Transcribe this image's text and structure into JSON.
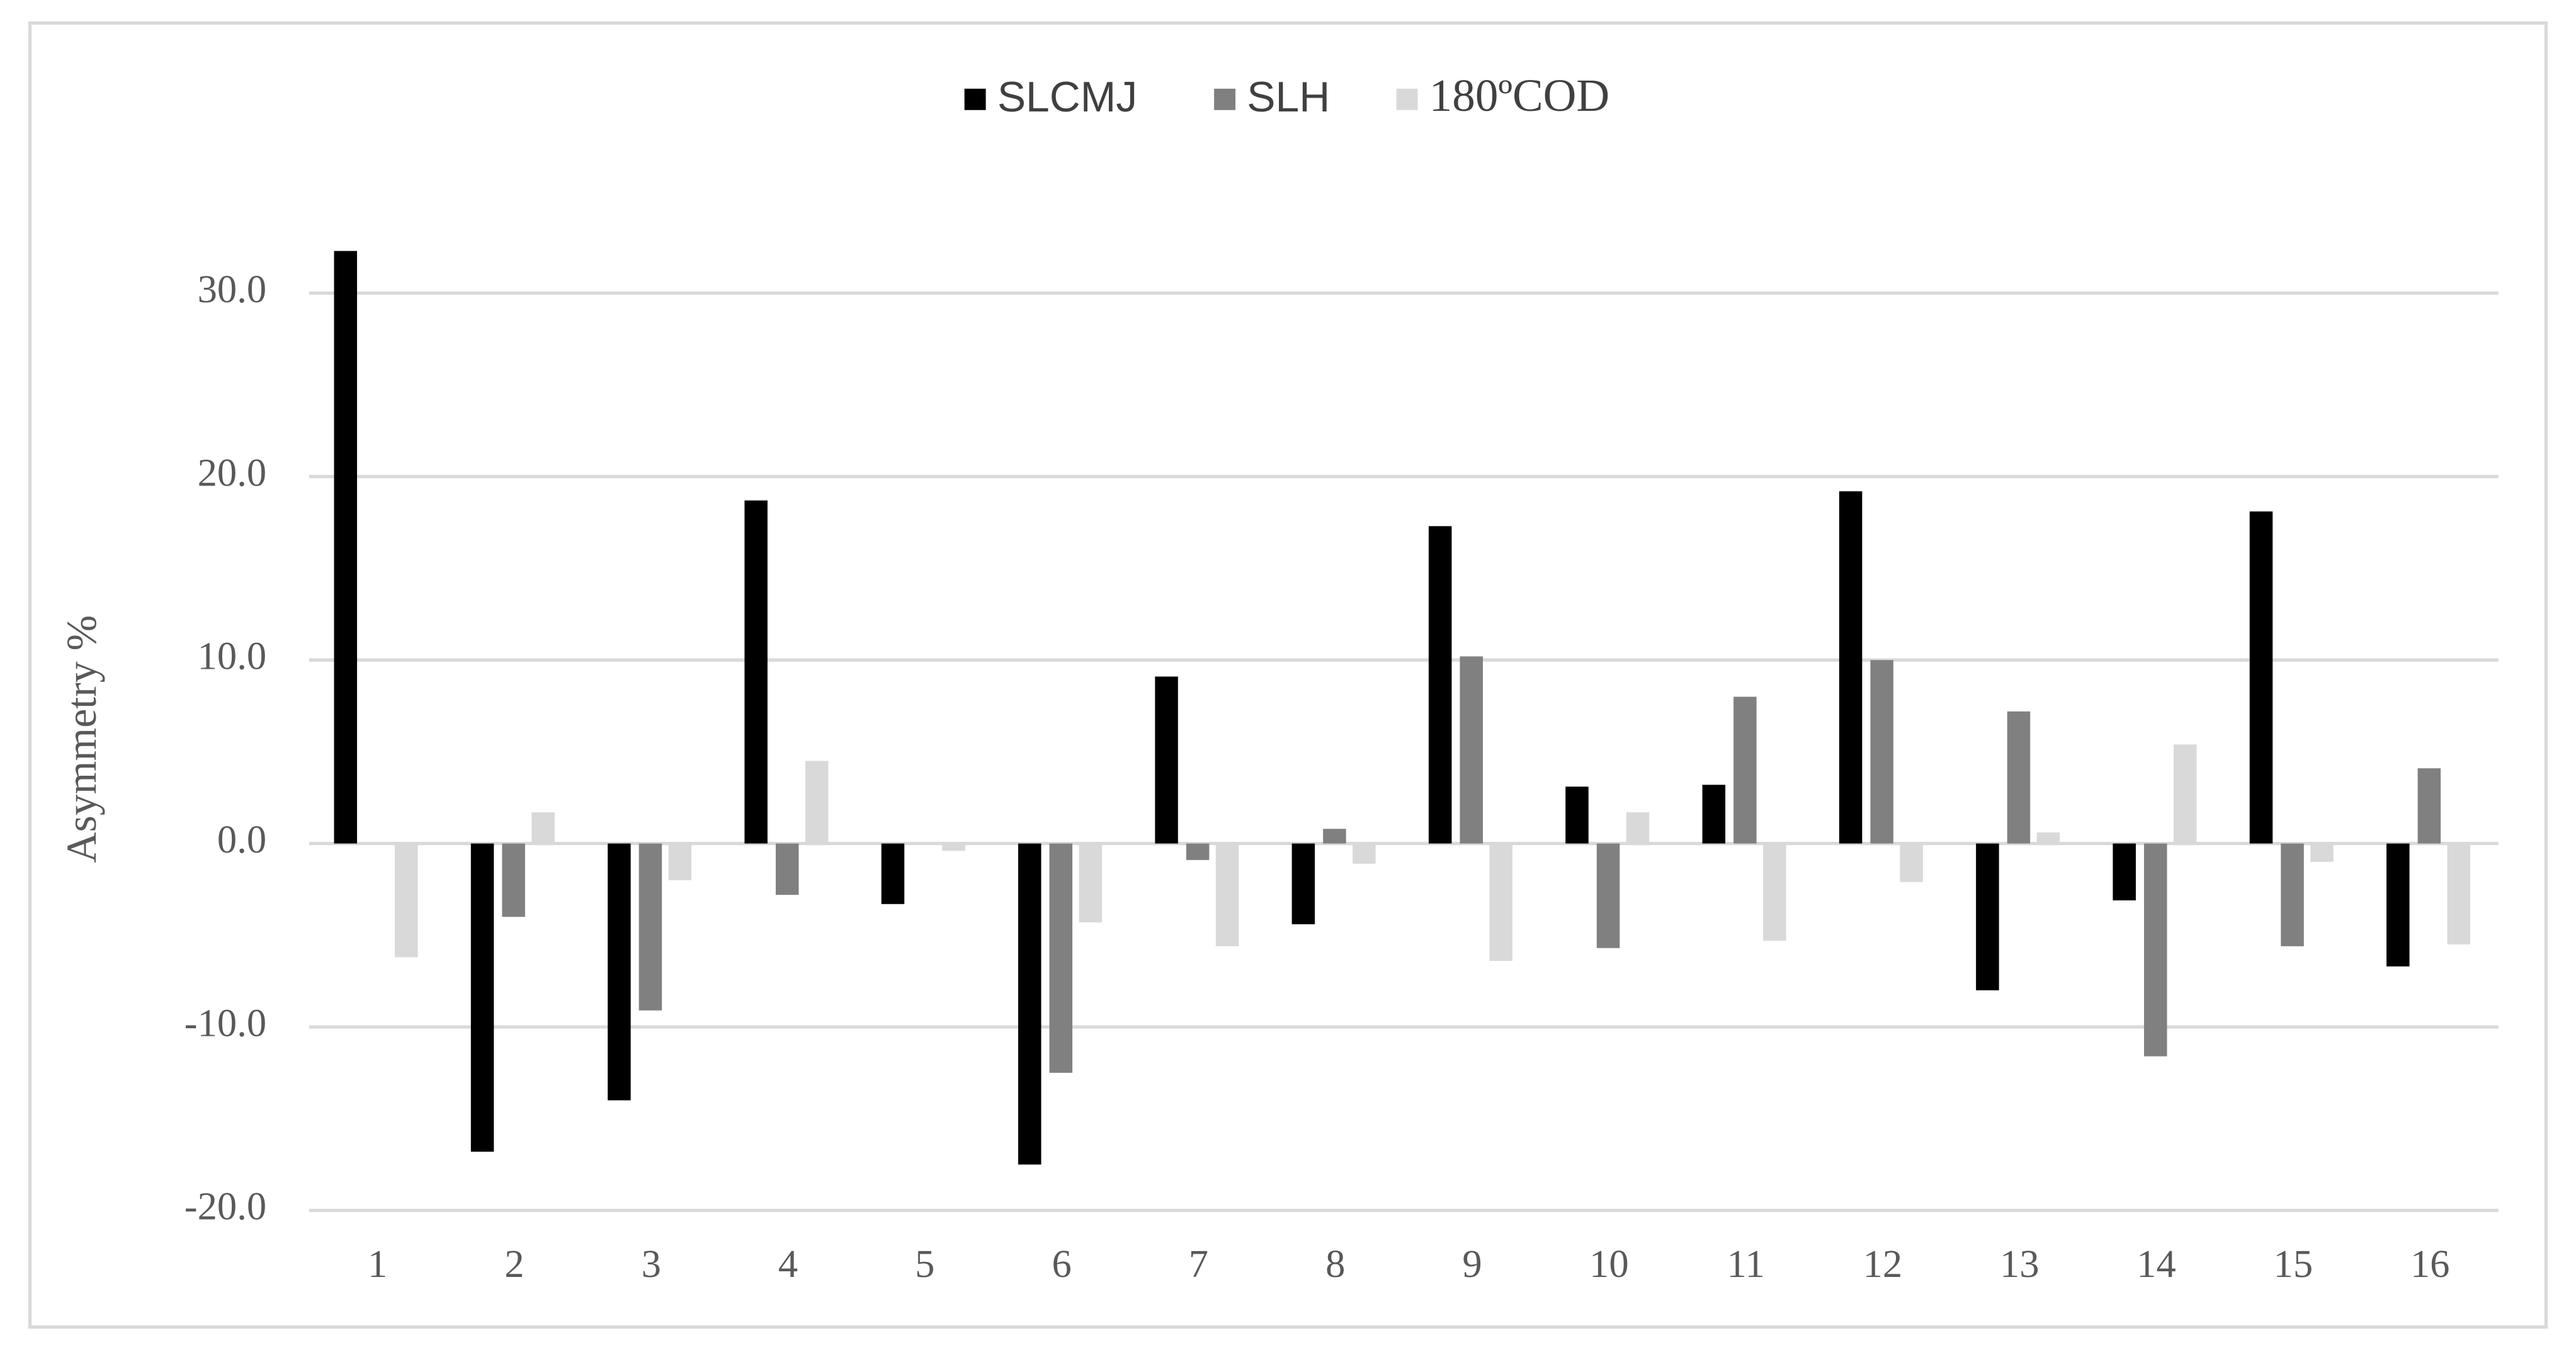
{
  "chart_data": {
    "type": "bar",
    "y_axis_label": "Asymmetry %",
    "categories": [
      "1",
      "2",
      "3",
      "4",
      "5",
      "6",
      "7",
      "8",
      "9",
      "10",
      "11",
      "12",
      "13",
      "14",
      "15",
      "16"
    ],
    "series": [
      {
        "name": "SLCMJ",
        "color": "#000000",
        "values": [
          32.3,
          -16.8,
          -14.0,
          18.7,
          -3.3,
          -17.5,
          9.1,
          -4.4,
          17.3,
          3.1,
          3.2,
          19.2,
          -8.0,
          -3.1,
          18.1,
          -6.7
        ]
      },
      {
        "name": "SLH",
        "color": "#808080",
        "values": [
          0,
          -4.0,
          -9.1,
          -2.8,
          0,
          -12.5,
          -0.9,
          0.8,
          10.2,
          -5.7,
          8.0,
          10.0,
          7.2,
          -11.6,
          -5.6,
          4.1
        ]
      },
      {
        "name": "180ºCOD",
        "color": "#d9d9d9",
        "values": [
          -6.2,
          1.7,
          -2.0,
          4.5,
          -0.4,
          -4.3,
          -5.6,
          -1.1,
          -6.4,
          1.7,
          -5.3,
          -2.1,
          0.6,
          5.4,
          -1.0,
          -5.5
        ]
      }
    ],
    "ylim": [
      -20,
      35
    ],
    "yticks": [
      {
        "value": -20,
        "label": "-20.0"
      },
      {
        "value": -10,
        "label": "-10.0"
      },
      {
        "value": 0,
        "label": "0.0"
      },
      {
        "value": 10,
        "label": "10.0"
      },
      {
        "value": 20,
        "label": "20.0"
      },
      {
        "value": 30,
        "label": "30.0"
      }
    ],
    "grid": true,
    "legend": "top"
  }
}
